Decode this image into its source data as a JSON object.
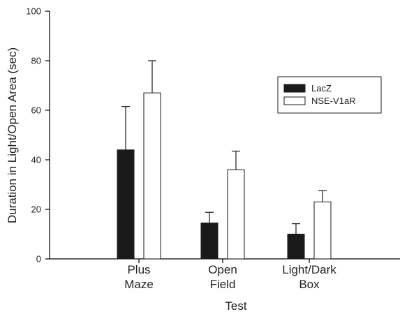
{
  "chart_data": {
    "type": "bar",
    "categories": [
      [
        "Plus",
        "Maze"
      ],
      [
        "Open",
        "Field"
      ],
      [
        "Light/Dark",
        "Box"
      ]
    ],
    "series": [
      {
        "name": "LacZ",
        "values": [
          44,
          14.5,
          10
        ],
        "errors": [
          17.5,
          4.3,
          4.2
        ],
        "color": "#1a1a1a"
      },
      {
        "name": "NSE-V1aR",
        "values": [
          67,
          36,
          23
        ],
        "errors": [
          13,
          7.5,
          4.5
        ],
        "color": "#ffffff"
      }
    ],
    "xlabel": "Test",
    "ylabel": "Duration in Light/Open Area (sec)",
    "ylim": [
      0,
      100
    ],
    "yticks": [
      0,
      20,
      40,
      60,
      80,
      100
    ],
    "legend_position": "top-right",
    "error_bars": "upper-only",
    "grid": false
  }
}
